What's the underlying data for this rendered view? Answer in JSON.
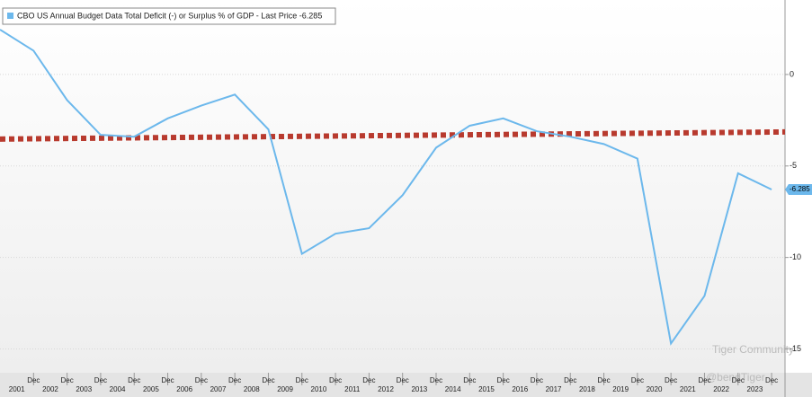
{
  "chart_data": {
    "type": "line",
    "legend": "CBO US Annual Budget Data Total Deficit (-) or Surplus % of GDP - Last Price -6.285",
    "x": [
      2000,
      2001,
      2002,
      2003,
      2004,
      2005,
      2006,
      2007,
      2008,
      2009,
      2010,
      2011,
      2012,
      2013,
      2014,
      2015,
      2016,
      2017,
      2018,
      2019,
      2020,
      2021,
      2022,
      2023
    ],
    "series": [
      {
        "name": "CBO US Annual Budget Data Total Deficit (-) or Surplus % of GDP",
        "color": "#6cb8ec",
        "values": [
          2.45,
          1.3,
          -1.4,
          -3.3,
          -3.4,
          -2.4,
          -1.7,
          -1.1,
          -3.0,
          -9.8,
          -8.7,
          -8.4,
          -6.6,
          -4.0,
          -2.8,
          -2.4,
          -3.1,
          -3.4,
          -3.8,
          -4.6,
          -14.7,
          -12.1,
          -5.4,
          -6.285
        ]
      }
    ],
    "trend": {
      "color": "#b83a2e",
      "x": [
        2000,
        2023.4
      ],
      "values": [
        -3.53,
        -3.14
      ]
    },
    "xlim": [
      2000,
      2023.4
    ],
    "ylim": [
      -16.3,
      4.07
    ],
    "yticks": [
      0,
      -5,
      -10,
      -15
    ],
    "tick_month": "Dec",
    "year_labels": [
      "2001",
      "2002",
      "2003",
      "2004",
      "2005",
      "2006",
      "2007",
      "2008",
      "2009",
      "2010",
      "2011",
      "2012",
      "2013",
      "2014",
      "2015",
      "2016",
      "2017",
      "2018",
      "2019",
      "2020",
      "2021",
      "2022",
      "2023"
    ],
    "grid": true,
    "watermark": [
      "Tiger Community",
      "@bendTiger"
    ]
  }
}
